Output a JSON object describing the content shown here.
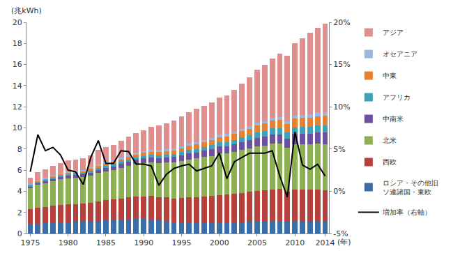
{
  "chart_data": {
    "type": "bar",
    "stacked": true,
    "grid": false,
    "legend": "right",
    "x_label": "(年)",
    "y_label": "(兆kWh)",
    "x": [
      1975,
      1976,
      1977,
      1978,
      1979,
      1980,
      1981,
      1982,
      1983,
      1984,
      1985,
      1986,
      1987,
      1988,
      1989,
      1990,
      1991,
      1992,
      1993,
      1994,
      1995,
      1996,
      1997,
      1998,
      1999,
      2000,
      2001,
      2002,
      2003,
      2004,
      2005,
      2006,
      2007,
      2008,
      2009,
      2010,
      2011,
      2012,
      2013,
      2014
    ],
    "xlim": [
      1974.5,
      2014.5
    ],
    "xticks": [
      1975,
      1980,
      1985,
      1990,
      1995,
      2000,
      2005,
      2010,
      2014
    ],
    "ylim": [
      0,
      20
    ],
    "yticks": [
      0,
      2,
      4,
      6,
      8,
      10,
      12,
      14,
      16,
      18,
      20
    ],
    "y2lim": [
      -5,
      20
    ],
    "y2ticks": [
      {
        "value": -5,
        "label": "-5%"
      },
      {
        "value": 0,
        "label": "0%"
      },
      {
        "value": 5,
        "label": "5%"
      },
      {
        "value": 10,
        "label": "10%"
      },
      {
        "value": 15,
        "label": "15%"
      },
      {
        "value": 20,
        "label": "20%"
      }
    ],
    "series": [
      {
        "name": "ロシア・その他旧ソ連諸国・東欧",
        "color": "#3b6ea8",
        "values": [
          0.9,
          0.95,
          0.98,
          1.02,
          1.05,
          1.08,
          1.1,
          1.12,
          1.15,
          1.2,
          1.25,
          1.28,
          1.32,
          1.35,
          1.38,
          1.38,
          1.35,
          1.25,
          1.18,
          1.08,
          1.05,
          1.03,
          1.0,
          0.98,
          0.99,
          1.02,
          1.03,
          1.04,
          1.07,
          1.09,
          1.11,
          1.14,
          1.16,
          1.18,
          1.1,
          1.18,
          1.2,
          1.21,
          1.2,
          1.22
        ]
      },
      {
        "name": "西欧",
        "color": "#b5403c",
        "values": [
          1.4,
          1.5,
          1.55,
          1.6,
          1.67,
          1.7,
          1.7,
          1.7,
          1.75,
          1.82,
          1.9,
          1.95,
          2.0,
          2.05,
          2.1,
          2.15,
          2.2,
          2.2,
          2.22,
          2.25,
          2.32,
          2.4,
          2.45,
          2.5,
          2.55,
          2.62,
          2.68,
          2.7,
          2.78,
          2.85,
          2.9,
          2.95,
          3.0,
          3.02,
          2.88,
          3.0,
          2.95,
          2.97,
          2.97,
          2.9
        ]
      },
      {
        "name": "北米",
        "color": "#8db152",
        "values": [
          2.0,
          2.15,
          2.25,
          2.35,
          2.4,
          2.45,
          2.5,
          2.5,
          2.58,
          2.7,
          2.75,
          2.78,
          2.88,
          3.0,
          3.1,
          3.15,
          3.2,
          3.22,
          3.32,
          3.4,
          3.5,
          3.6,
          3.65,
          3.75,
          3.82,
          3.95,
          3.88,
          4.0,
          4.05,
          4.12,
          4.25,
          4.25,
          4.35,
          4.3,
          4.12,
          4.3,
          4.3,
          4.25,
          4.32,
          4.35
        ]
      },
      {
        "name": "中南米",
        "color": "#6d50a0",
        "values": [
          0.15,
          0.17,
          0.19,
          0.21,
          0.23,
          0.25,
          0.26,
          0.27,
          0.29,
          0.31,
          0.33,
          0.35,
          0.37,
          0.39,
          0.4,
          0.42,
          0.44,
          0.45,
          0.47,
          0.5,
          0.52,
          0.55,
          0.58,
          0.61,
          0.63,
          0.66,
          0.67,
          0.7,
          0.73,
          0.77,
          0.8,
          0.84,
          0.88,
          0.9,
          0.9,
          0.95,
          0.99,
          1.02,
          1.05,
          1.08
        ]
      },
      {
        "name": "アフリカ",
        "color": "#3ba2b7",
        "values": [
          0.1,
          0.11,
          0.12,
          0.13,
          0.14,
          0.15,
          0.16,
          0.17,
          0.18,
          0.19,
          0.2,
          0.21,
          0.22,
          0.23,
          0.24,
          0.25,
          0.26,
          0.27,
          0.28,
          0.29,
          0.31,
          0.32,
          0.34,
          0.35,
          0.37,
          0.39,
          0.41,
          0.43,
          0.46,
          0.48,
          0.5,
          0.53,
          0.55,
          0.58,
          0.59,
          0.62,
          0.64,
          0.66,
          0.68,
          0.7
        ]
      },
      {
        "name": "中東",
        "color": "#e8812e",
        "values": [
          0.05,
          0.06,
          0.07,
          0.08,
          0.09,
          0.1,
          0.12,
          0.14,
          0.16,
          0.18,
          0.2,
          0.22,
          0.24,
          0.25,
          0.27,
          0.28,
          0.3,
          0.32,
          0.34,
          0.36,
          0.38,
          0.4,
          0.43,
          0.45,
          0.48,
          0.5,
          0.53,
          0.56,
          0.59,
          0.62,
          0.66,
          0.69,
          0.73,
          0.76,
          0.8,
          0.83,
          0.85,
          0.88,
          0.9,
          0.93
        ]
      },
      {
        "name": "オセアニア",
        "color": "#9cb6dc",
        "values": [
          0.1,
          0.1,
          0.11,
          0.11,
          0.12,
          0.12,
          0.13,
          0.13,
          0.14,
          0.14,
          0.15,
          0.16,
          0.16,
          0.17,
          0.17,
          0.18,
          0.18,
          0.19,
          0.19,
          0.2,
          0.2,
          0.21,
          0.21,
          0.22,
          0.22,
          0.23,
          0.23,
          0.24,
          0.24,
          0.25,
          0.25,
          0.26,
          0.26,
          0.27,
          0.27,
          0.28,
          0.28,
          0.28,
          0.29,
          0.29
        ]
      },
      {
        "name": "アジア",
        "color": "#df8f8d",
        "values": [
          0.6,
          0.76,
          0.83,
          0.9,
          1.0,
          1.05,
          1.03,
          1.07,
          1.15,
          1.36,
          1.42,
          1.45,
          1.61,
          1.76,
          1.84,
          1.97,
          2.17,
          2.3,
          2.4,
          2.62,
          2.82,
          2.98,
          3.14,
          3.24,
          3.34,
          3.53,
          3.67,
          3.93,
          4.28,
          4.62,
          5.03,
          5.34,
          5.67,
          5.99,
          6.14,
          6.84,
          7.29,
          7.73,
          8.09,
          8.43
        ]
      },
      {
        "name": "増加率（右軸）",
        "type": "line",
        "axis": "y2",
        "color": "#000000",
        "values": [
          2.3,
          6.7,
          4.8,
          5.2,
          4.3,
          2.5,
          2.3,
          0.8,
          4.0,
          6.0,
          3.3,
          3.3,
          4.8,
          4.7,
          3.2,
          3.2,
          3.0,
          0.7,
          2.0,
          2.7,
          3.0,
          3.2,
          2.4,
          2.7,
          3.0,
          4.5,
          1.5,
          3.5,
          4.0,
          4.5,
          4.5,
          4.5,
          4.8,
          1.8,
          -0.7,
          7.0,
          3.1,
          2.6,
          3.2,
          1.8
        ]
      }
    ]
  }
}
